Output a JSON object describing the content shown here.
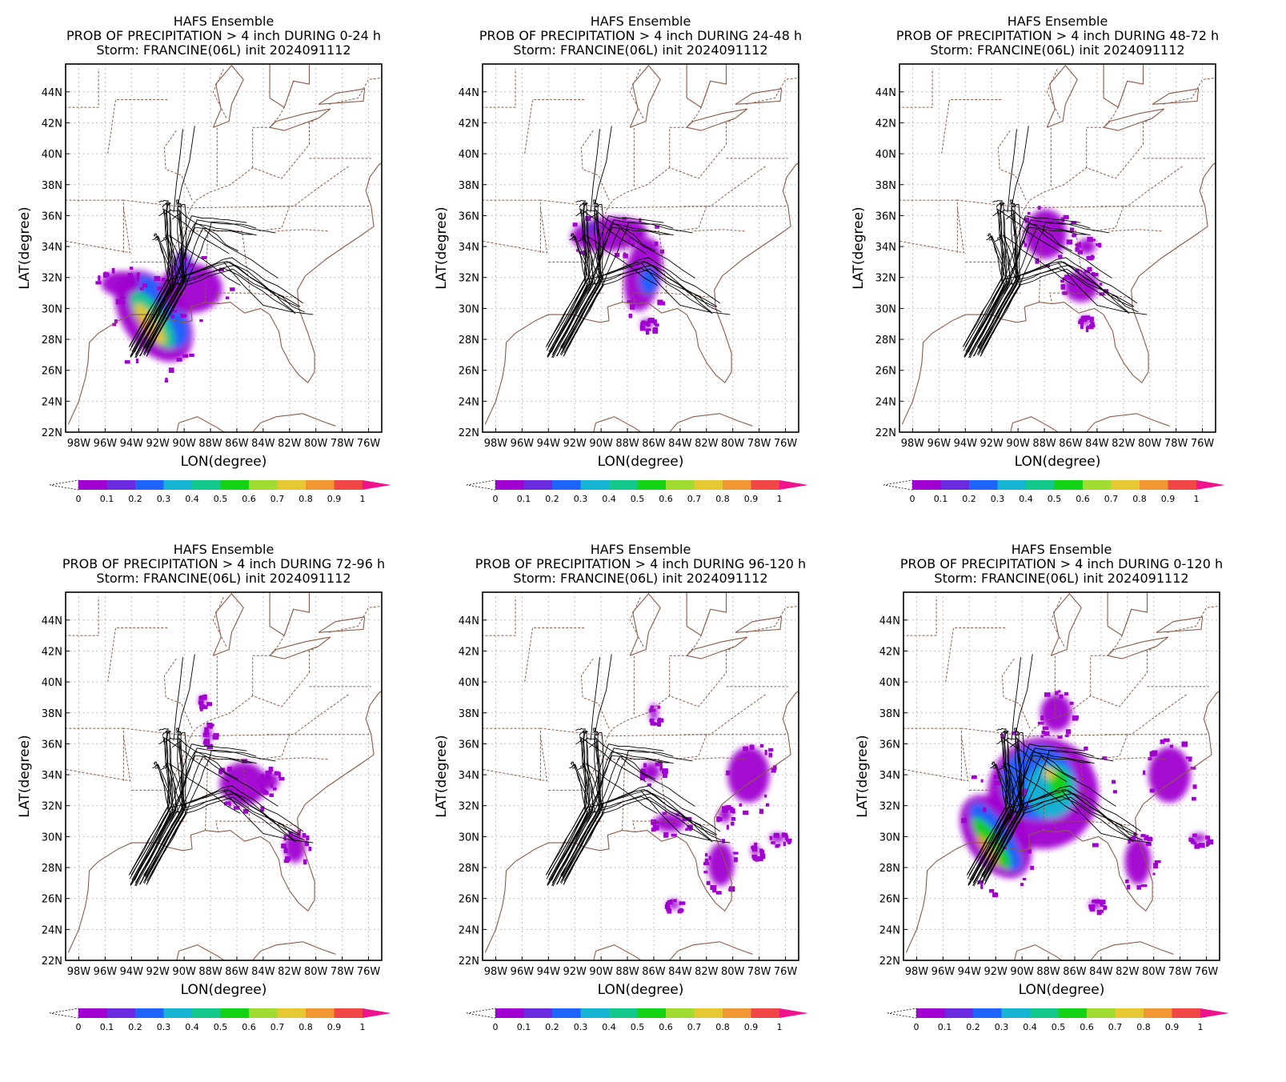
{
  "panels": [
    {
      "line1": "HAFS Ensemble",
      "line2": "PROB OF PRECIPITATION > 4 inch DURING  0-24 h",
      "line3": "Storm: FRANCINE(06L) init 2024091112",
      "swath": "early"
    },
    {
      "line1": "HAFS Ensemble",
      "line2": "PROB OF PRECIPITATION > 4 inch DURING 24-48 h",
      "line3": "Storm: FRANCINE(06L) init 2024091112",
      "swath": "day2"
    },
    {
      "line1": "HAFS Ensemble",
      "line2": "PROB OF PRECIPITATION > 4 inch DURING 48-72 h",
      "line3": "Storm: FRANCINE(06L) init 2024091112",
      "swath": "day3"
    },
    {
      "line1": "HAFS Ensemble",
      "line2": "PROB OF PRECIPITATION > 4 inch DURING 72-96 h",
      "line3": "Storm: FRANCINE(06L) init 2024091112",
      "swath": "day4"
    },
    {
      "line1": "HAFS Ensemble",
      "line2": "PROB OF PRECIPITATION > 4 inch DURING 96-120 h",
      "line3": "Storm: FRANCINE(06L) init 2024091112",
      "swath": "day5"
    },
    {
      "line1": "HAFS Ensemble",
      "line2": "PROB OF PRECIPITATION > 4 inch DURING 0-120 h",
      "line3": "Storm: FRANCINE(06L) init 2024091112",
      "swath": "total"
    }
  ],
  "axes": {
    "xlabel": "LON(degree)",
    "ylabel": "LAT(degree)",
    "lon_ticks": [
      "98W",
      "96W",
      "94W",
      "92W",
      "90W",
      "88W",
      "86W",
      "84W",
      "82W",
      "80W",
      "78W",
      "76W"
    ],
    "lat_ticks": [
      "22N",
      "24N",
      "26N",
      "28N",
      "30N",
      "32N",
      "34N",
      "36N",
      "38N",
      "40N",
      "42N",
      "44N"
    ],
    "lon_range": [
      -99,
      -75
    ],
    "lat_range": [
      22,
      45.8
    ]
  },
  "colorbar": {
    "labels": [
      "0",
      "0.1",
      "0.2",
      "0.3",
      "0.4",
      "0.5",
      "0.6",
      "0.7",
      "0.8",
      "0.9",
      "1"
    ],
    "colors": [
      "#a000d0",
      "#6a2ae0",
      "#1e64ff",
      "#14b4d2",
      "#14c88c",
      "#14d214",
      "#a0dc32",
      "#e6c832",
      "#f09632",
      "#f04646"
    ],
    "under_color": "#ffffff",
    "over_color": "#f0148c"
  },
  "colors": {
    "track": "#000000",
    "boundary": "#8b5a4a",
    "grid": "#aaaaaa"
  }
}
